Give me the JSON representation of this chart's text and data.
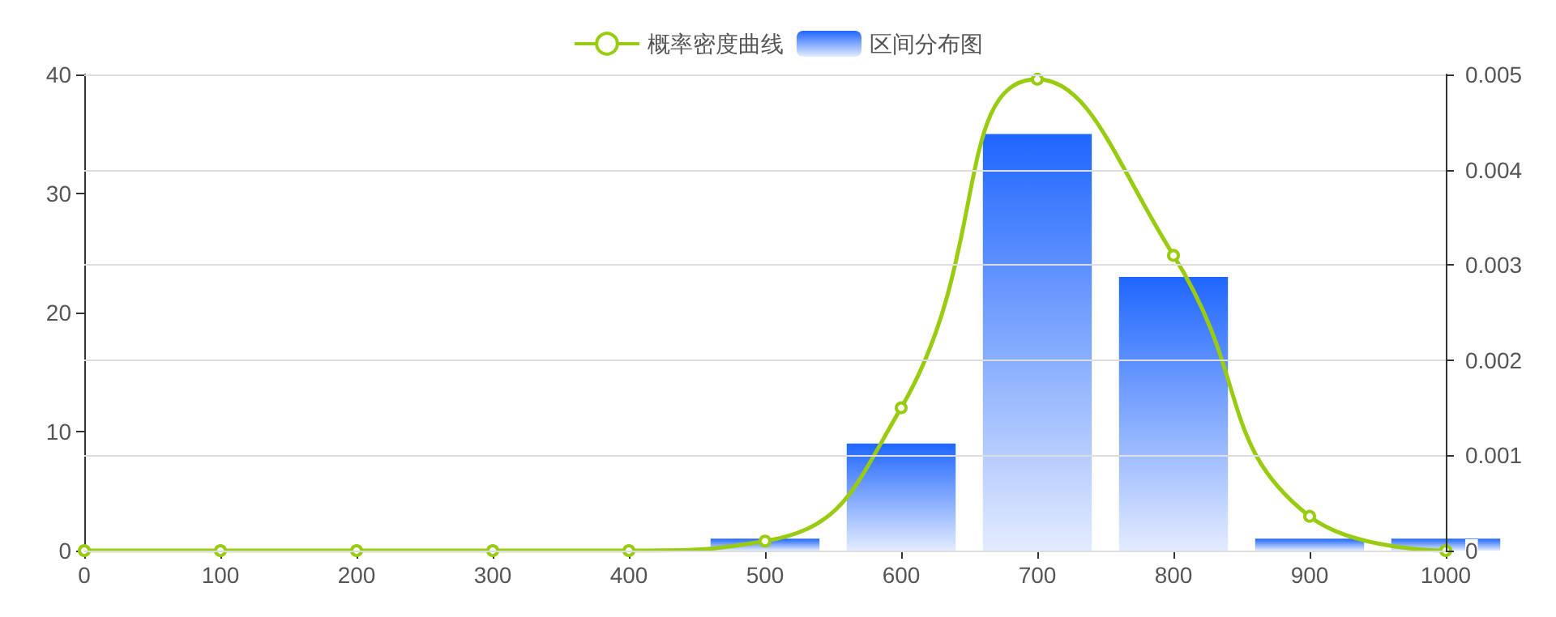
{
  "chart_data": {
    "type": "bar",
    "series": [
      {
        "name": "概率密度曲线",
        "type": "line",
        "axis": "y2",
        "color": "#99cc11",
        "x": [
          0,
          100,
          200,
          300,
          400,
          500,
          600,
          700,
          800,
          900,
          1000
        ],
        "values": [
          0,
          0,
          0,
          0,
          0,
          0.0001,
          0.0015,
          0.00495,
          0.0031,
          0.00036,
          0
        ]
      },
      {
        "name": "区间分布图",
        "color": "#1f66ff",
        "x": [
          500,
          600,
          700,
          800,
          900,
          1000
        ],
        "values": [
          1,
          9,
          35,
          23,
          1,
          1
        ]
      }
    ],
    "xlim": [
      0,
      1000
    ],
    "xticks": [
      0,
      100,
      200,
      300,
      400,
      500,
      600,
      700,
      800,
      900,
      1000
    ],
    "ylim": [
      0,
      40
    ],
    "yticks": [
      0,
      10,
      20,
      30,
      40
    ],
    "y2lim": [
      0,
      0.005
    ],
    "y2ticks": [
      0,
      0.001,
      0.002,
      0.003,
      0.004,
      0.005
    ],
    "grid": "y",
    "legend": "top",
    "marker": "circle",
    "line_style": "solid"
  }
}
